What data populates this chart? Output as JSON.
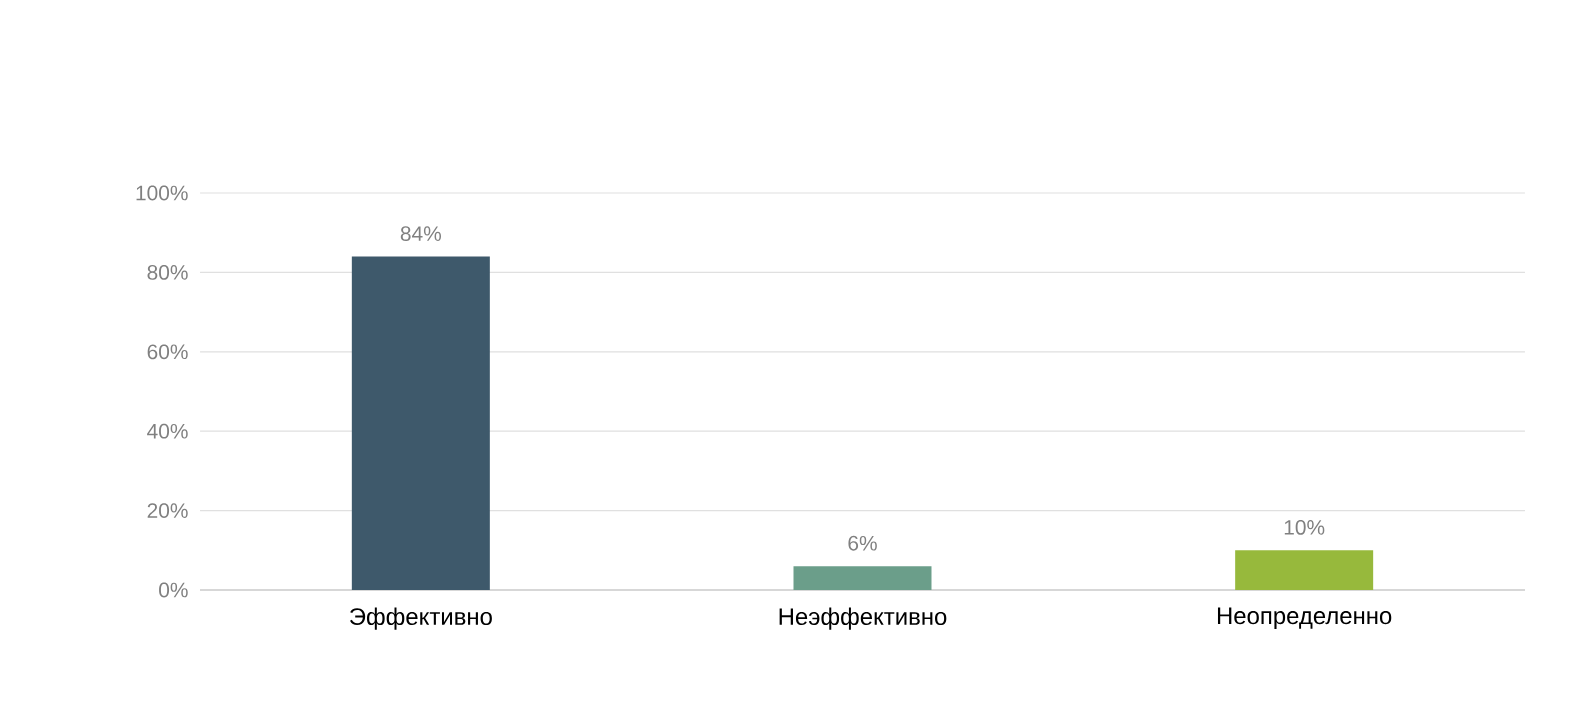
{
  "chart_data": {
    "type": "bar",
    "categories": [
      "Эффективно",
      "Неэффективно",
      "Неопределенно"
    ],
    "values": [
      84,
      6,
      10
    ],
    "colors": [
      "#3e596b",
      "#6b9e8a",
      "#97b93c"
    ],
    "value_labels": [
      "84%",
      "6%",
      "10%"
    ],
    "ylim": [
      0,
      100
    ],
    "yticks": [
      {
        "value": 0,
        "label": "0%"
      },
      {
        "value": 20,
        "label": "20%"
      },
      {
        "value": 40,
        "label": "40%"
      },
      {
        "value": 60,
        "label": "60%"
      },
      {
        "value": 80,
        "label": "80%"
      },
      {
        "value": 100,
        "label": "100%"
      }
    ],
    "grid": "y"
  }
}
